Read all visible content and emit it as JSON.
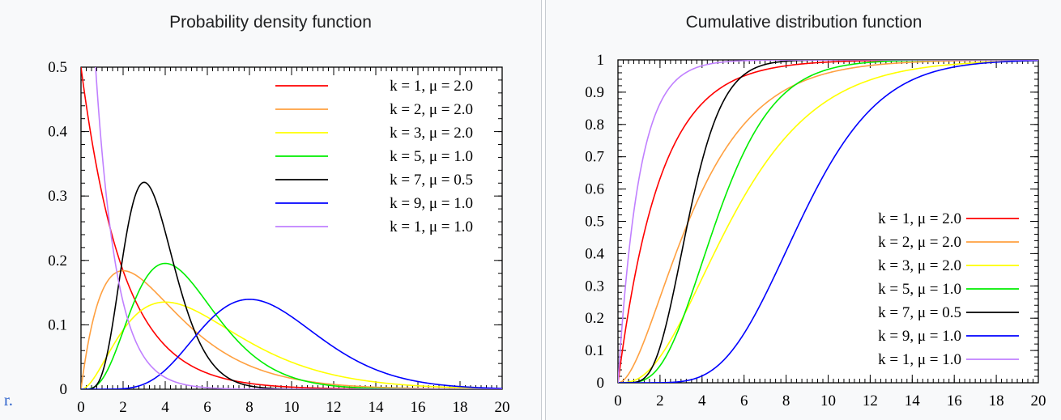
{
  "edge_fragment": "r.",
  "chart_data": [
    {
      "type": "line",
      "title": "Probability density function",
      "xlabel": "",
      "ylabel": "",
      "xlim": [
        0,
        20
      ],
      "ylim": [
        0,
        0.5
      ],
      "x_ticks": [
        "0",
        "2",
        "4",
        "6",
        "8",
        "10",
        "12",
        "14",
        "16",
        "18",
        "20"
      ],
      "y_ticks": [
        "0",
        "0.1",
        "0.2",
        "0.3",
        "0.4",
        "0.5"
      ],
      "grid": false,
      "legend_position": "top-right",
      "function": "pdf",
      "series": [
        {
          "name": "k = 1, μ = 2.0",
          "k": 1,
          "mu": 2.0,
          "color": "#ff0000"
        },
        {
          "name": "k = 2, μ = 2.0",
          "k": 2,
          "mu": 2.0,
          "color": "#ffa040"
        },
        {
          "name": "k = 3, μ = 2.0",
          "k": 3,
          "mu": 2.0,
          "color": "#ffff00"
        },
        {
          "name": "k = 5, μ = 1.0",
          "k": 5,
          "mu": 1.0,
          "color": "#00ee00"
        },
        {
          "name": "k = 7, μ = 0.5",
          "k": 7,
          "mu": 0.5,
          "color": "#000000"
        },
        {
          "name": "k = 9, μ = 1.0",
          "k": 9,
          "mu": 1.0,
          "color": "#0000ff"
        },
        {
          "name": "k = 1, μ = 1.0",
          "k": 1,
          "mu": 1.0,
          "color": "#c080ff"
        }
      ]
    },
    {
      "type": "line",
      "title": "Cumulative distribution function",
      "xlabel": "",
      "ylabel": "",
      "xlim": [
        0,
        20
      ],
      "ylim": [
        0,
        1
      ],
      "x_ticks": [
        "0",
        "2",
        "4",
        "6",
        "8",
        "10",
        "12",
        "14",
        "16",
        "18",
        "20"
      ],
      "y_ticks": [
        "0",
        "0.1",
        "0.2",
        "0.3",
        "0.4",
        "0.5",
        "0.6",
        "0.7",
        "0.8",
        "0.9",
        "1"
      ],
      "grid": false,
      "legend_position": "bottom-right",
      "function": "cdf",
      "series": [
        {
          "name": "k = 1, μ = 2.0",
          "k": 1,
          "mu": 2.0,
          "color": "#ff0000"
        },
        {
          "name": "k = 2, μ = 2.0",
          "k": 2,
          "mu": 2.0,
          "color": "#ffa040"
        },
        {
          "name": "k = 3, μ = 2.0",
          "k": 3,
          "mu": 2.0,
          "color": "#ffff00"
        },
        {
          "name": "k = 5, μ = 1.0",
          "k": 5,
          "mu": 1.0,
          "color": "#00ee00"
        },
        {
          "name": "k = 7, μ = 0.5",
          "k": 7,
          "mu": 0.5,
          "color": "#000000"
        },
        {
          "name": "k = 9, μ = 1.0",
          "k": 9,
          "mu": 1.0,
          "color": "#0000ff"
        },
        {
          "name": "k = 1, μ = 1.0",
          "k": 1,
          "mu": 1.0,
          "color": "#c080ff"
        }
      ]
    }
  ]
}
